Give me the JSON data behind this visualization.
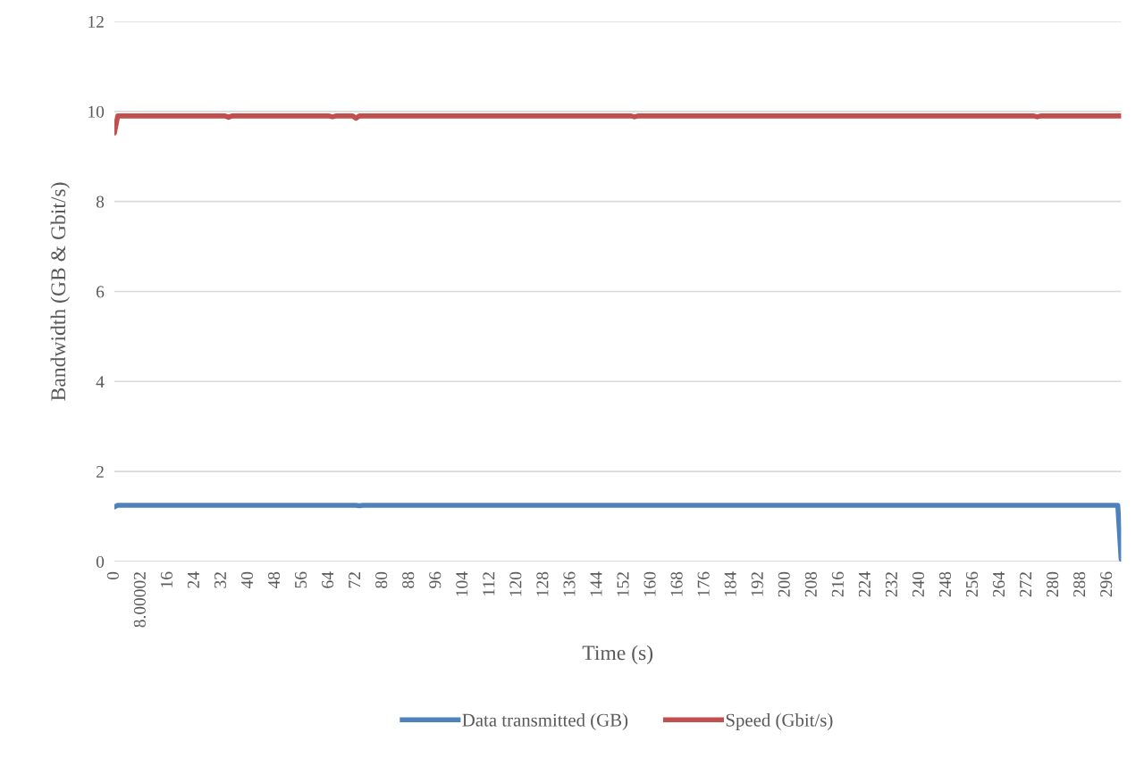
{
  "chart_data": {
    "type": "line",
    "xlabel": "Time (s)",
    "ylabel": "Bandwidth (GB & Gbit/s)",
    "xlim": [
      0,
      300
    ],
    "xticks": [
      0,
      8.00002,
      16,
      24,
      32,
      40,
      48,
      56,
      64,
      72,
      80,
      88,
      96,
      104,
      112,
      120,
      128,
      136,
      144,
      152,
      160,
      168,
      176,
      184,
      192,
      200,
      208,
      216,
      224,
      232,
      240,
      248,
      256,
      264,
      272,
      280,
      288,
      296
    ],
    "ylim": [
      0,
      12
    ],
    "yticks": [
      0,
      2,
      4,
      6,
      8,
      10,
      12
    ],
    "grid": "y",
    "legend": "bottom",
    "marker": "none",
    "line_style": "solid",
    "series": [
      {
        "name": "Data transmitted (GB)",
        "color": "#4f81bd",
        "x": [
          0,
          1,
          72,
          73,
          74,
          299,
          300
        ],
        "values": [
          1.21,
          1.25,
          1.25,
          1.24,
          1.25,
          1.25,
          0.05
        ]
      },
      {
        "name": "Speed (Gbit/s)",
        "color": "#c0504d",
        "x": [
          0,
          1,
          33,
          34,
          35,
          64,
          65,
          66,
          71,
          72,
          73,
          154,
          155,
          156,
          274,
          275,
          276,
          300
        ],
        "values": [
          9.52,
          9.9,
          9.9,
          9.87,
          9.9,
          9.9,
          9.88,
          9.9,
          9.9,
          9.85,
          9.9,
          9.9,
          9.88,
          9.9,
          9.9,
          9.88,
          9.9,
          9.9
        ]
      }
    ]
  }
}
